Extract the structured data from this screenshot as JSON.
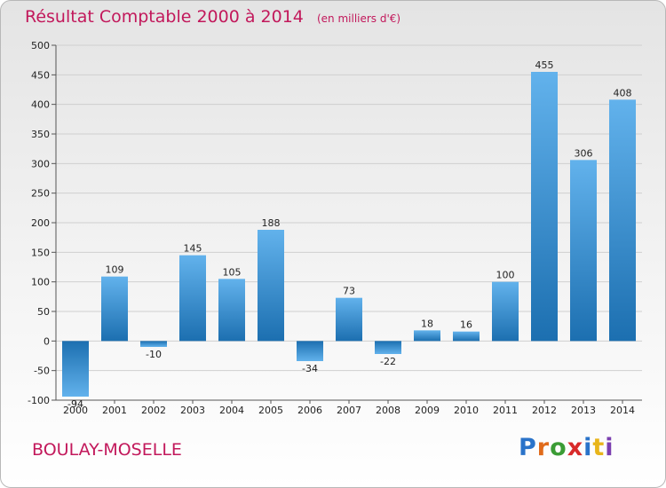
{
  "header": {
    "title": "Résultat Comptable 2000 à 2014",
    "unit": "(en milliers d'€)"
  },
  "footer": {
    "place": "BOULAY-MOSELLE",
    "logo": "Proxiti"
  },
  "colors": {
    "title": "#c2185b",
    "bar_light": "#62b2ec",
    "bar_dark": "#1c6fb0"
  },
  "chart_data": {
    "type": "bar",
    "title": "Résultat Comptable 2000 à 2014",
    "subtitle": "(en milliers d'€)",
    "xlabel": "",
    "ylabel": "",
    "categories": [
      "2000",
      "2001",
      "2002",
      "2003",
      "2004",
      "2005",
      "2006",
      "2007",
      "2008",
      "2009",
      "2010",
      "2011",
      "2012",
      "2013",
      "2014"
    ],
    "values": [
      -94,
      109,
      -10,
      145,
      105,
      188,
      -34,
      73,
      -22,
      18,
      16,
      100,
      455,
      306,
      408
    ],
    "data_labels": [
      "-94",
      "109",
      "-10",
      "145",
      "105",
      "188",
      "-34",
      "73",
      "-22",
      "18",
      "16",
      "100",
      "455",
      "306",
      "408"
    ],
    "ylim": [
      -100,
      500
    ],
    "yticks": [
      "-100",
      "-50",
      "0",
      "50",
      "100",
      "150",
      "200",
      "250",
      "300",
      "350",
      "400",
      "450",
      "500"
    ],
    "grid": true
  }
}
